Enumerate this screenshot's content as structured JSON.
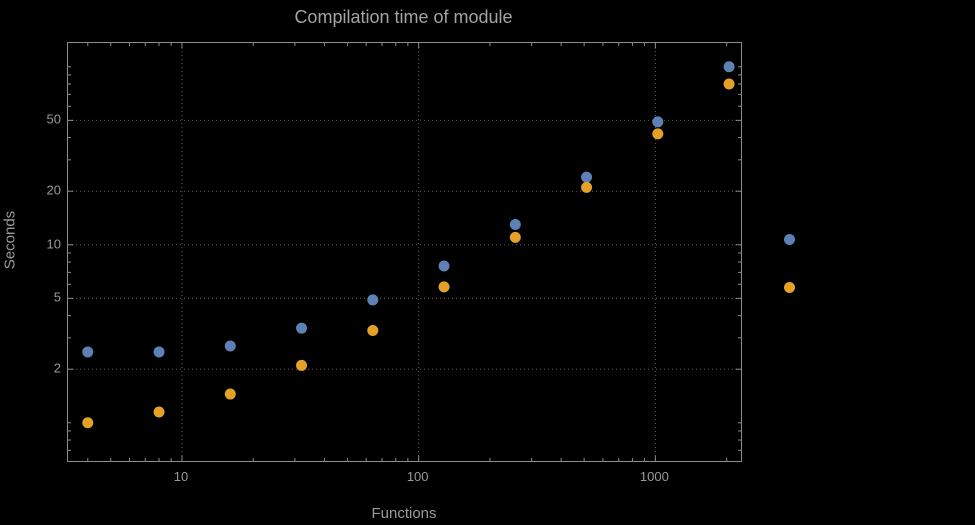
{
  "colors": {
    "background": "#000000",
    "title_text": "#a3a3a3",
    "label_text": "#9a9a9a",
    "tick_text": "#999999",
    "frame": "#8c8c8c",
    "grid": "#5e5e5e",
    "series1": "#5e81b5",
    "series2": "#e5a028"
  },
  "chart_data": {
    "type": "scatter",
    "title": "Compilation time of module",
    "xlabel": "Functions",
    "ylabel": "Seconds",
    "x_scale": "log",
    "y_scale": "log",
    "x": [
      4,
      8,
      16,
      32,
      64,
      128,
      256,
      512,
      1024,
      2048
    ],
    "series": [
      {
        "name": "series-1-blue",
        "color": "#5e81b5",
        "values": [
          2.5,
          2.5,
          2.7,
          3.4,
          4.9,
          7.6,
          13,
          24,
          49,
          100
        ]
      },
      {
        "name": "series-2-orange",
        "color": "#e5a028",
        "values": [
          1.0,
          1.15,
          1.45,
          2.1,
          3.3,
          5.8,
          11,
          21,
          42,
          80
        ]
      }
    ],
    "xlim": [
      3.3,
      2300
    ],
    "ylim": [
      0.61,
      136
    ],
    "x_ticks": [
      10,
      100,
      1000
    ],
    "y_ticks": [
      2,
      5,
      10,
      20,
      50
    ],
    "grid": "dotted",
    "legend_position": "right-center",
    "legend_markers": [
      {
        "series": "series-1-blue",
        "color": "#5e81b5",
        "label": ""
      },
      {
        "series": "series-2-orange",
        "color": "#e5a028",
        "label": ""
      }
    ]
  }
}
